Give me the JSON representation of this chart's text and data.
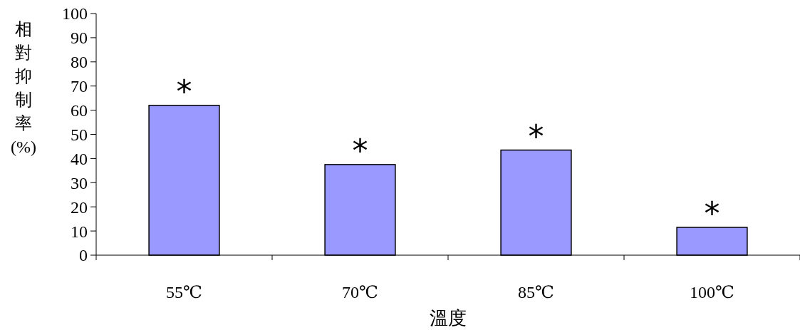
{
  "chart_data": {
    "type": "bar",
    "xlabel": "溫度",
    "ylabel": "相對抑制率(%)",
    "categories": [
      "55℃",
      "70℃",
      "85℃",
      "100℃"
    ],
    "values": [
      62,
      37.5,
      43.5,
      11.5
    ],
    "color": "#9999ff",
    "ylim": [
      0,
      100
    ],
    "yticks": [
      0,
      10,
      20,
      30,
      40,
      50,
      60,
      70,
      80,
      90,
      100
    ],
    "grid": false,
    "annotations": [
      {
        "text": "*",
        "x": "55℃",
        "y": 62
      },
      {
        "text": "*",
        "x": "70℃",
        "y": 37.5
      },
      {
        "text": "*",
        "x": "85℃",
        "y": 43.5
      },
      {
        "text": "*",
        "x": "100℃",
        "y": 11.5
      }
    ]
  }
}
